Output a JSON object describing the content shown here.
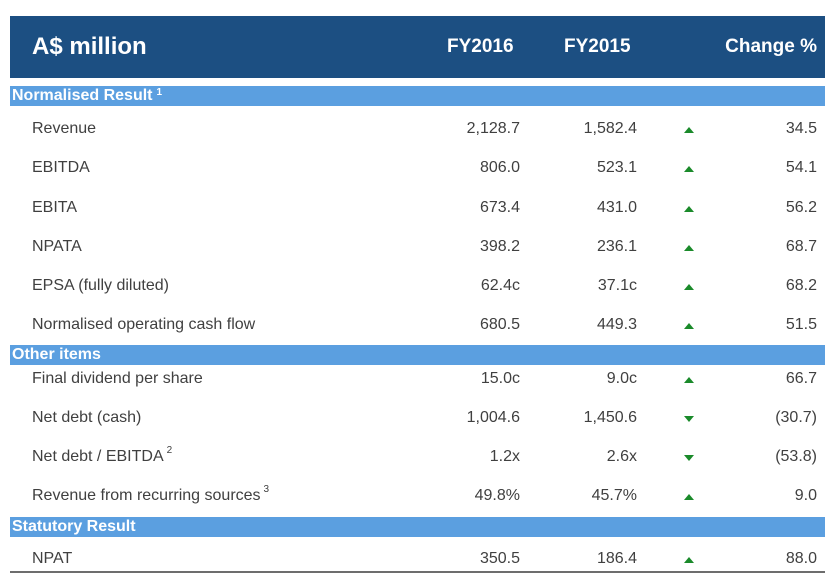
{
  "header": {
    "title": "A$ million",
    "col_fy2016": "FY2016",
    "col_fy2015": "FY2015",
    "col_change": "Change %"
  },
  "sections": [
    {
      "title": "Normalised Result",
      "footnote": "1",
      "rows": [
        {
          "label": "Revenue",
          "footnote": "",
          "fy2016": "2,128.7",
          "fy2015": "1,582.4",
          "direction": "up",
          "change": "34.5"
        },
        {
          "label": "EBITDA",
          "footnote": "",
          "fy2016": "806.0",
          "fy2015": "523.1",
          "direction": "up",
          "change": "54.1"
        },
        {
          "label": "EBITA",
          "footnote": "",
          "fy2016": "673.4",
          "fy2015": "431.0",
          "direction": "up",
          "change": "56.2"
        },
        {
          "label": "NPATA",
          "footnote": "",
          "fy2016": "398.2",
          "fy2015": "236.1",
          "direction": "up",
          "change": "68.7"
        },
        {
          "label": "EPSA (fully diluted)",
          "footnote": "",
          "fy2016": "62.4c",
          "fy2015": "37.1c",
          "direction": "up",
          "change": "68.2"
        },
        {
          "label": "Normalised operating cash flow",
          "footnote": "",
          "fy2016": "680.5",
          "fy2015": "449.3",
          "direction": "up",
          "change": "51.5"
        }
      ]
    },
    {
      "title": "Other items",
      "footnote": "",
      "rows": [
        {
          "label": "Final dividend per share",
          "footnote": "",
          "fy2016": "15.0c",
          "fy2015": "9.0c",
          "direction": "up",
          "change": "66.7"
        },
        {
          "label": "Net debt (cash)",
          "footnote": "",
          "fy2016": "1,004.6",
          "fy2015": "1,450.6",
          "direction": "down",
          "change": "(30.7)"
        },
        {
          "label": "Net debt / EBITDA",
          "footnote": "2",
          "fy2016": "1.2x",
          "fy2015": "2.6x",
          "direction": "down",
          "change": "(53.8)"
        },
        {
          "label": "Revenue from recurring sources",
          "footnote": "3",
          "fy2016": "49.8%",
          "fy2015": "45.7%",
          "direction": "up",
          "change": "9.0"
        }
      ]
    },
    {
      "title": "Statutory Result",
      "footnote": "",
      "rows": [
        {
          "label": "NPAT",
          "footnote": "",
          "fy2016": "350.5",
          "fy2015": "186.4",
          "direction": "up",
          "change": "88.0"
        }
      ]
    }
  ],
  "colors": {
    "header_bg": "#1c4f82",
    "section_bg": "#5b9fe0",
    "arrow": "#1a8a2a",
    "text": "#404040"
  }
}
